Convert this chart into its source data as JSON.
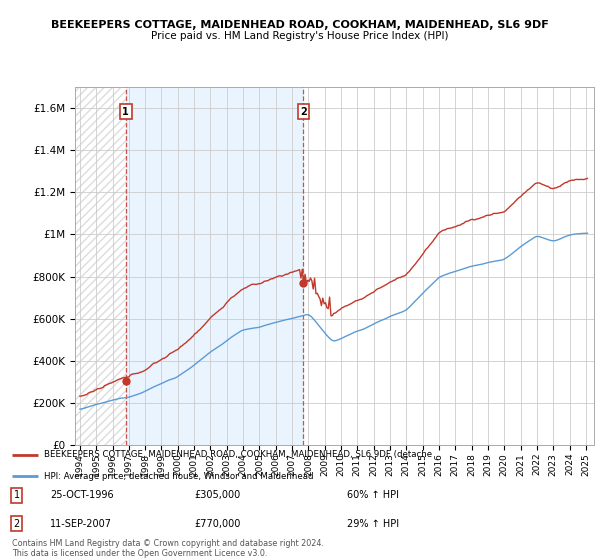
{
  "title_line1": "BEEKEEPERS COTTAGE, MAIDENHEAD ROAD, COOKHAM, MAIDENHEAD, SL6 9DF",
  "title_line2": "Price paid vs. HM Land Registry's House Price Index (HPI)",
  "red_label": "BEEKEEPERS COTTAGE, MAIDENHEAD ROAD, COOKHAM, MAIDENHEAD, SL6 9DF (detache",
  "blue_label": "HPI: Average price, detached house, Windsor and Maidenhead",
  "footnote": "Contains HM Land Registry data © Crown copyright and database right 2024.\nThis data is licensed under the Open Government Licence v3.0.",
  "purchase1_date": "25-OCT-1996",
  "purchase1_price": 305000,
  "purchase1_hpi": "60% ↑ HPI",
  "purchase2_date": "11-SEP-2007",
  "purchase2_price": 770000,
  "purchase2_hpi": "29% ↑ HPI",
  "ylim": [
    0,
    1700000
  ],
  "xlim_left": 1993.7,
  "xlim_right": 2025.5,
  "red_color": "#c0392b",
  "blue_color": "#5b9bd5",
  "hatch_color": "#bbbbbb",
  "fill_color": "#ddeeff",
  "background_color": "#ffffff",
  "grid_color": "#cccccc",
  "purchase1_x": 1996.81,
  "purchase2_x": 2007.7,
  "hpi_at_p1": 191000,
  "hpi_at_p2": 530000
}
